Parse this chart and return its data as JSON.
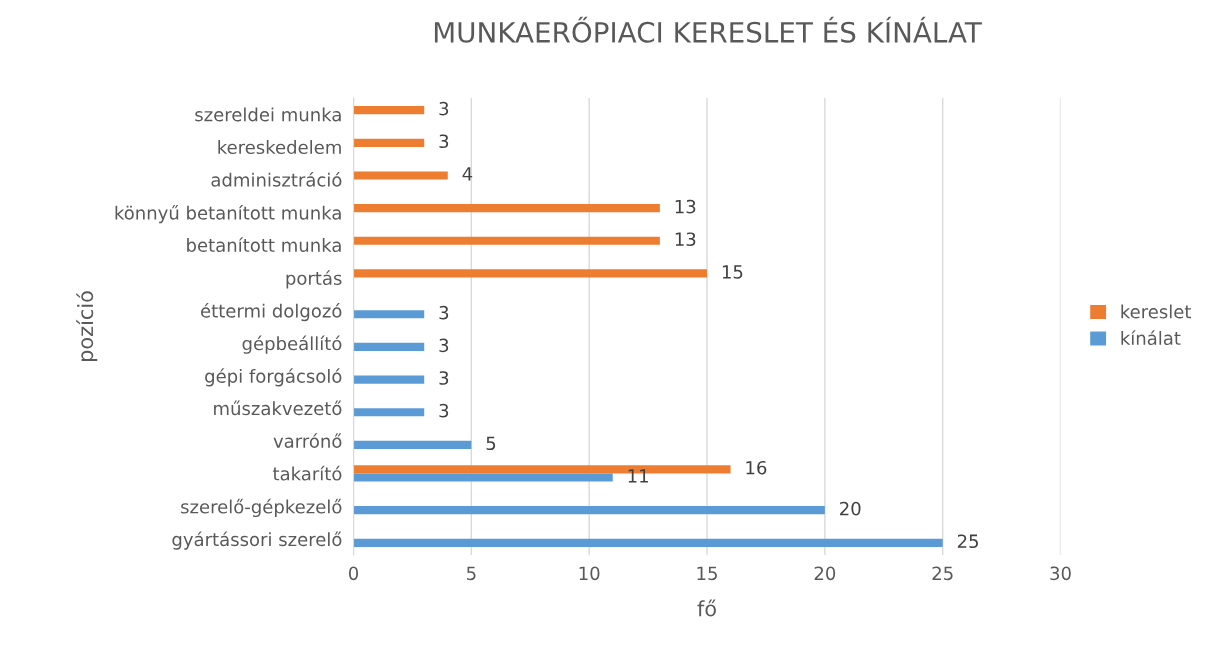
{
  "chart_data": {
    "type": "bar",
    "orientation": "horizontal",
    "title": "MUNKAERŐPIACI KERESLET ÉS KÍNÁLAT",
    "xlabel": "fő",
    "ylabel": "pozíció",
    "categories": [
      "szereldei munka",
      "kereskedelem",
      "adminisztráció",
      "könnyű betanított munka",
      "betanított munka",
      "portás",
      "éttermi dolgozó",
      "gépbeállító",
      "gépi forgácsoló",
      "műszakvezető",
      "varrónő",
      "takarító",
      "szerelő-gépkezelő",
      "gyártássori szerelő"
    ],
    "series": [
      {
        "name": "kereslet",
        "color": "#ed7d31",
        "values": [
          3,
          3,
          4,
          13,
          13,
          15,
          null,
          null,
          null,
          null,
          null,
          16,
          null,
          null
        ]
      },
      {
        "name": "kínálat",
        "color": "#5b9bd5",
        "values": [
          null,
          null,
          null,
          null,
          null,
          null,
          3,
          3,
          3,
          3,
          5,
          11,
          20,
          25
        ]
      }
    ],
    "xlim": [
      0,
      30
    ],
    "xticks": [
      0,
      5,
      10,
      15,
      20,
      25,
      30
    ],
    "grid": "x",
    "legend": "right",
    "data_labels": true
  }
}
